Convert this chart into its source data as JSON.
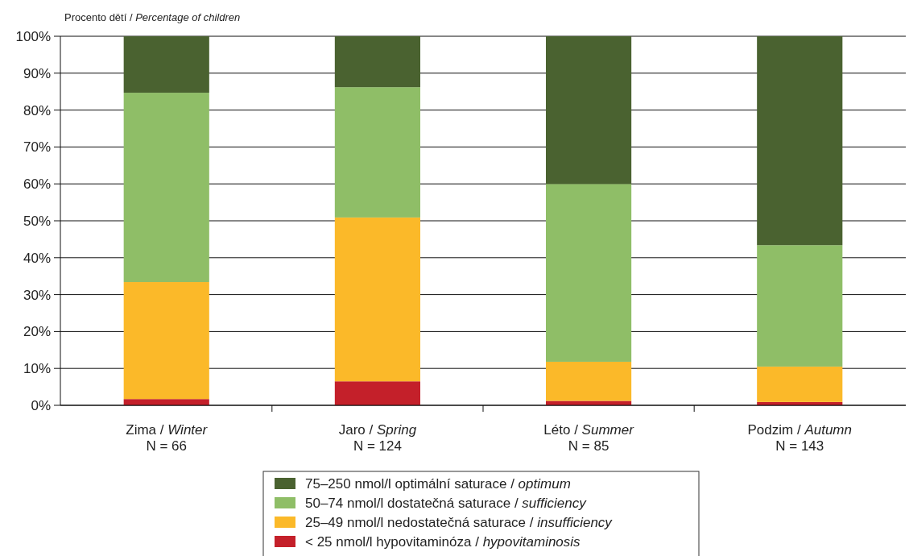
{
  "chart_data": {
    "type": "bar",
    "stacked": true,
    "ylabel": "Procento dětí / Percentage of children",
    "categories": [
      "Zima / Winter\nN = 66",
      "Jaro / Spring\nN = 124",
      "Léto / Summer\nN = 85",
      "Podzim / Autumn\nN = 143"
    ],
    "series": [
      {
        "name": "< 25 nmol/l hypovitaminóza / hypovitaminosis",
        "color": "#c4202a",
        "values": [
          1.7,
          6.5,
          1.2,
          0.9
        ]
      },
      {
        "name": "25–49 nmol/l nedostatečná saturace / insufficiency",
        "color": "#fbb929",
        "values": [
          31.7,
          44.4,
          10.6,
          9.6
        ]
      },
      {
        "name": "50–74 nmol/l dostatečná saturace / sufficiency",
        "color": "#8fbe67",
        "values": [
          51.3,
          35.3,
          48.2,
          32.9
        ]
      },
      {
        "name": "75–250 nmol/l optimální saturace / optimum",
        "color": "#4a6230",
        "values": [
          15.3,
          13.8,
          40.0,
          56.6
        ]
      }
    ],
    "ylim": [
      0,
      100
    ],
    "yticks": [
      {
        "value": 0,
        "label": "0%"
      },
      {
        "value": 10,
        "label": "10%"
      },
      {
        "value": 20,
        "label": "20%"
      },
      {
        "value": 30,
        "label": "30%"
      },
      {
        "value": 40,
        "label": "40%"
      },
      {
        "value": 50,
        "label": "50%"
      },
      {
        "value": 60,
        "label": "60%"
      },
      {
        "value": 70,
        "label": "70%"
      },
      {
        "value": 80,
        "label": "80%"
      },
      {
        "value": 90,
        "label": "90%"
      },
      {
        "value": 100,
        "label": "100%"
      }
    ],
    "grid": "y",
    "legend": "bottom"
  }
}
